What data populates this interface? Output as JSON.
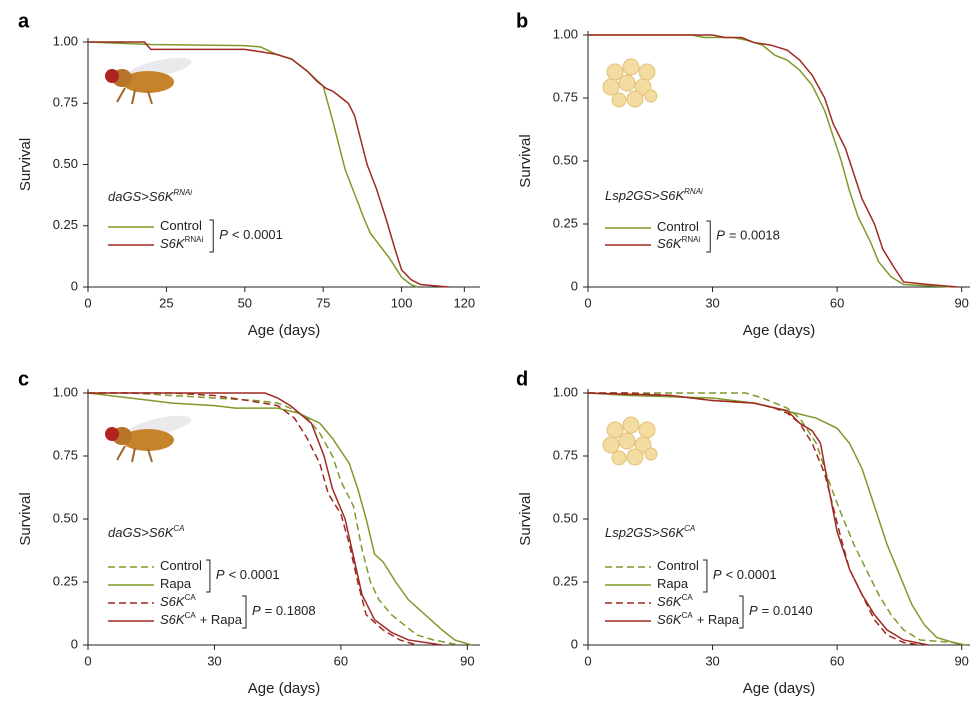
{
  "chart_data": [
    {
      "type": "line",
      "panel": "a",
      "xlabel": "Age (days)",
      "ylabel": "Survival",
      "genotype": {
        "text": "daGS>S6K",
        "sup": "RNAi"
      },
      "xlim": [
        0,
        125
      ],
      "xticks": [
        0,
        25,
        50,
        75,
        100,
        120
      ],
      "ylim": [
        0,
        1
      ],
      "yticks": [
        0,
        0.25,
        {
          "value": 0.5,
          "label": "0.50"
        },
        0.75,
        {
          "value": 1,
          "label": "1.00"
        }
      ],
      "series": [
        {
          "name": "Control",
          "color": "#7f9a2b",
          "linestyle": "solid",
          "x": [
            0,
            20,
            50,
            55,
            60,
            65,
            70,
            75,
            78,
            80,
            82,
            85,
            88,
            90,
            93,
            96,
            100,
            103,
            105
          ],
          "values": [
            1,
            0.99,
            0.985,
            0.98,
            0.95,
            0.93,
            0.88,
            0.82,
            0.68,
            0.58,
            0.48,
            0.38,
            0.28,
            0.22,
            0.17,
            0.12,
            0.04,
            0.01,
            0
          ]
        },
        {
          "name": "S6K",
          "name_sup": "RNAi",
          "color": "#9e2a22",
          "linestyle": "solid",
          "x": [
            0,
            18,
            20,
            50,
            55,
            60,
            65,
            70,
            73,
            76,
            78,
            80,
            83,
            85,
            87,
            89,
            92,
            95,
            98,
            100,
            103,
            106,
            115
          ],
          "values": [
            1,
            1,
            0.97,
            0.97,
            0.96,
            0.95,
            0.93,
            0.88,
            0.84,
            0.81,
            0.8,
            0.78,
            0.75,
            0.7,
            0.6,
            0.5,
            0.4,
            0.28,
            0.15,
            0.07,
            0.03,
            0.01,
            0
          ]
        }
      ],
      "pvalues": [
        {
          "symbol": "P",
          "text": "< 0.0001"
        }
      ]
    },
    {
      "type": "line",
      "panel": "b",
      "xlabel": "Age (days)",
      "ylabel": "Survival",
      "genotype": {
        "text": "Lsp2GS>S6K",
        "sup": "RNAi"
      },
      "xlim": [
        0,
        92
      ],
      "xticks": [
        0,
        30,
        60,
        90
      ],
      "ylim": [
        0,
        1
      ],
      "yticks": [
        0,
        0.25,
        {
          "value": 0.5,
          "label": "0.50"
        },
        0.75,
        {
          "value": 1,
          "label": "1.00"
        }
      ],
      "series": [
        {
          "name": "Control",
          "color": "#7f9a2b",
          "linestyle": "solid",
          "x": [
            0,
            25,
            28,
            35,
            38,
            42,
            45,
            48,
            51,
            54,
            57,
            59,
            61,
            63,
            65,
            68,
            70,
            73,
            76,
            88
          ],
          "values": [
            1,
            1,
            0.99,
            0.99,
            0.98,
            0.96,
            0.92,
            0.9,
            0.86,
            0.8,
            0.7,
            0.6,
            0.5,
            0.38,
            0.28,
            0.18,
            0.1,
            0.04,
            0.01,
            0
          ]
        },
        {
          "name": "S6K",
          "name_sup": "RNAi",
          "color": "#9e2a22",
          "linestyle": "solid",
          "x": [
            0,
            30,
            33,
            37,
            40,
            44,
            48,
            51,
            54,
            57,
            59,
            62,
            64,
            66,
            69,
            71,
            74,
            76,
            82,
            89
          ],
          "values": [
            1,
            1,
            0.99,
            0.99,
            0.97,
            0.96,
            0.94,
            0.9,
            0.84,
            0.75,
            0.65,
            0.55,
            0.45,
            0.35,
            0.25,
            0.15,
            0.07,
            0.02,
            0.01,
            0
          ]
        }
      ],
      "pvalues": [
        {
          "symbol": "P",
          "text": "= 0.0018"
        }
      ]
    },
    {
      "type": "line",
      "panel": "c",
      "xlabel": "Age (days)",
      "ylabel": "Survival",
      "genotype": {
        "text": "daGS>S6K",
        "sup": "CA"
      },
      "xlim": [
        0,
        93
      ],
      "xticks": [
        0,
        30,
        60,
        90
      ],
      "ylim": [
        0,
        1
      ],
      "yticks": [
        0,
        0.25,
        {
          "value": 0.5,
          "label": "0.50"
        },
        0.75,
        {
          "value": 1,
          "label": "1.00"
        }
      ],
      "series": [
        {
          "name": "Control",
          "color": "#7f9a2b",
          "linestyle": "dashed",
          "x": [
            0,
            10,
            20,
            30,
            40,
            45,
            48,
            52,
            55,
            58,
            60,
            63,
            65,
            67,
            69,
            72,
            75,
            78,
            82,
            88
          ],
          "values": [
            1,
            1,
            0.99,
            0.98,
            0.97,
            0.96,
            0.94,
            0.9,
            0.84,
            0.75,
            0.65,
            0.55,
            0.38,
            0.25,
            0.18,
            0.12,
            0.08,
            0.04,
            0.02,
            0
          ]
        },
        {
          "name": "Rapa",
          "color": "#7f9a2b",
          "linestyle": "solid",
          "x": [
            0,
            10,
            20,
            30,
            35,
            45,
            50,
            55,
            58,
            62,
            64,
            66,
            68,
            70,
            73,
            76,
            80,
            84,
            87,
            91
          ],
          "values": [
            1,
            0.98,
            0.96,
            0.95,
            0.94,
            0.94,
            0.92,
            0.88,
            0.82,
            0.72,
            0.62,
            0.5,
            0.36,
            0.33,
            0.25,
            0.18,
            0.12,
            0.06,
            0.02,
            0
          ]
        },
        {
          "name": "S6K",
          "name_sup": "CA",
          "color": "#9e2a22",
          "linestyle": "dashed",
          "x": [
            0,
            20,
            30,
            38,
            45,
            49,
            52,
            55,
            57,
            60,
            62,
            64,
            66,
            70,
            74,
            78
          ],
          "values": [
            1,
            1,
            0.99,
            0.97,
            0.95,
            0.9,
            0.82,
            0.72,
            0.6,
            0.52,
            0.4,
            0.25,
            0.12,
            0.06,
            0.02,
            0
          ]
        },
        {
          "name": "S6K",
          "name_sup": "CA",
          "name_suffix": "+ Rapa",
          "color": "#9e2a22",
          "linestyle": "solid",
          "x": [
            0,
            42,
            45,
            48,
            53,
            56,
            58,
            61,
            63,
            65,
            68,
            72,
            76,
            84
          ],
          "values": [
            1,
            1,
            0.98,
            0.95,
            0.88,
            0.75,
            0.62,
            0.5,
            0.35,
            0.2,
            0.1,
            0.05,
            0.02,
            0
          ]
        }
      ],
      "pvalues": [
        {
          "symbol": "P",
          "text": "< 0.0001"
        },
        {
          "symbol": "P",
          "text": "= 0.1808"
        }
      ]
    },
    {
      "type": "line",
      "panel": "d",
      "xlabel": "Age (days)",
      "ylabel": "Survival",
      "genotype": {
        "text": "Lsp2GS>S6K",
        "sup": "CA"
      },
      "xlim": [
        0,
        92
      ],
      "xticks": [
        0,
        30,
        60,
        90
      ],
      "ylim": [
        0,
        1
      ],
      "yticks": [
        0,
        0.25,
        {
          "value": 0.5,
          "label": "0.50"
        },
        0.75,
        {
          "value": 1,
          "label": "1.00"
        }
      ],
      "series": [
        {
          "name": "Control",
          "color": "#7f9a2b",
          "linestyle": "dashed",
          "x": [
            0,
            38,
            42,
            45,
            48,
            51,
            55,
            58,
            61,
            64,
            67,
            70,
            73,
            76,
            80,
            88,
            90
          ],
          "values": [
            1,
            1,
            0.98,
            0.96,
            0.94,
            0.9,
            0.8,
            0.65,
            0.52,
            0.4,
            0.3,
            0.2,
            0.12,
            0.06,
            0.02,
            0.01,
            0
          ]
        },
        {
          "name": "Rapa",
          "color": "#7f9a2b",
          "linestyle": "solid",
          "x": [
            0,
            10,
            30,
            40,
            45,
            50,
            55,
            60,
            63,
            66,
            69,
            72,
            75,
            78,
            81,
            84,
            88,
            91
          ],
          "values": [
            1,
            0.99,
            0.98,
            0.96,
            0.94,
            0.92,
            0.9,
            0.86,
            0.8,
            0.7,
            0.55,
            0.4,
            0.28,
            0.16,
            0.08,
            0.03,
            0.01,
            0
          ]
        },
        {
          "name": "S6K",
          "name_sup": "CA",
          "color": "#9e2a22",
          "linestyle": "dashed",
          "x": [
            0,
            10,
            20,
            30,
            40,
            45,
            48,
            51,
            54,
            57,
            59,
            61,
            63,
            66,
            69,
            72,
            76,
            80
          ],
          "values": [
            1,
            1,
            0.99,
            0.97,
            0.96,
            0.94,
            0.92,
            0.88,
            0.8,
            0.68,
            0.55,
            0.42,
            0.3,
            0.2,
            0.1,
            0.04,
            0.01,
            0
          ]
        },
        {
          "name": "S6K",
          "name_sup": "CA",
          "name_suffix": "+ Rapa",
          "color": "#9e2a22",
          "linestyle": "solid",
          "x": [
            0,
            20,
            30,
            40,
            48,
            51,
            54,
            56,
            58,
            60,
            63,
            66,
            69,
            72,
            76,
            82
          ],
          "values": [
            1,
            0.99,
            0.97,
            0.96,
            0.93,
            0.88,
            0.85,
            0.8,
            0.62,
            0.45,
            0.3,
            0.2,
            0.12,
            0.06,
            0.02,
            0
          ]
        }
      ],
      "pvalues": [
        {
          "symbol": "P",
          "text": "< 0.0001"
        },
        {
          "symbol": "P",
          "text": "= 0.0140"
        }
      ]
    }
  ]
}
